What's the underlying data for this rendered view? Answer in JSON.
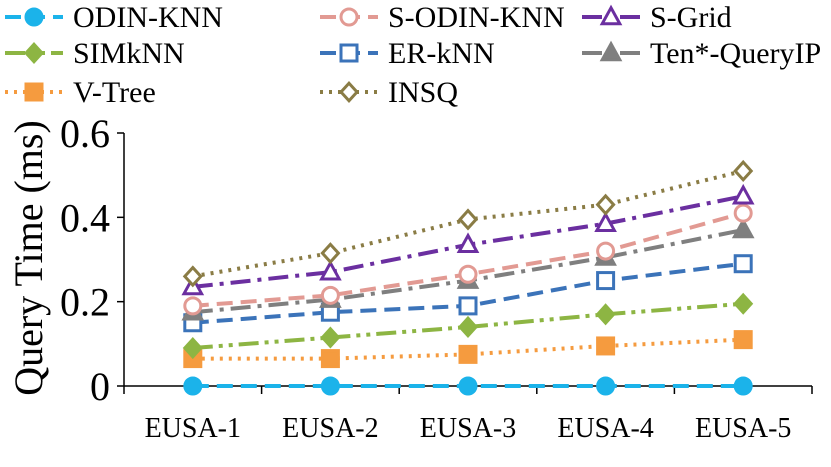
{
  "chart_data": {
    "type": "line",
    "title": "",
    "xlabel": "",
    "ylabel": "Query Time (ms)",
    "categories": [
      "EUSA-1",
      "EUSA-2",
      "EUSA-3",
      "EUSA-4",
      "EUSA-5"
    ],
    "ylim": [
      0,
      0.6
    ],
    "yticks": [
      0,
      0.2,
      0.4,
      0.6
    ],
    "ytick_labels": [
      "0",
      "0.2",
      "0.4",
      "0.6"
    ],
    "grid": false,
    "legend_position": "top",
    "series": [
      {
        "name": "ODIN-KNN",
        "color": "#1BB3EA",
        "marker": "circle-filled",
        "dash": "dash",
        "values": [
          0.0,
          0.0,
          0.0,
          0.0,
          0.0
        ]
      },
      {
        "name": "S-ODIN-KNN",
        "color": "#E29A93",
        "marker": "circle-open",
        "dash": "dash",
        "values": [
          0.19,
          0.215,
          0.265,
          0.32,
          0.41
        ]
      },
      {
        "name": "S-Grid",
        "color": "#6B2FA0",
        "marker": "triangle-open",
        "dash": "dashdot",
        "values": [
          0.235,
          0.27,
          0.335,
          0.385,
          0.45
        ]
      },
      {
        "name": "SIMkNN",
        "color": "#8DB543",
        "marker": "diamond-filled",
        "dash": "dashdotdot",
        "values": [
          0.09,
          0.115,
          0.14,
          0.17,
          0.195
        ]
      },
      {
        "name": "ER-kNN",
        "color": "#3B73B9",
        "marker": "square-open",
        "dash": "dash",
        "values": [
          0.15,
          0.175,
          0.19,
          0.25,
          0.29
        ]
      },
      {
        "name": "Ten*-QueryIP",
        "color": "#7F7F7F",
        "marker": "triangle-filled",
        "dash": "dashdot",
        "values": [
          0.175,
          0.205,
          0.25,
          0.305,
          0.37
        ]
      },
      {
        "name": "V-Tree",
        "color": "#F59B3F",
        "marker": "square-filled",
        "dash": "dot",
        "values": [
          0.065,
          0.065,
          0.075,
          0.095,
          0.11
        ]
      },
      {
        "name": "INSQ",
        "color": "#8A7C45",
        "marker": "diamond-open",
        "dash": "dot",
        "values": [
          0.26,
          0.315,
          0.395,
          0.43,
          0.51
        ]
      }
    ]
  }
}
